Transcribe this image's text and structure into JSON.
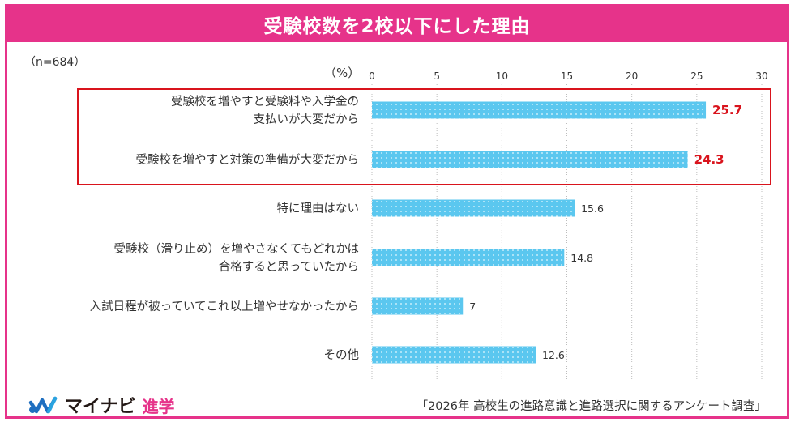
{
  "title": "受験校数を2校以下にした理由",
  "note": "（n=684）",
  "unit": "（%）",
  "brand": {
    "logo_text": "マイナビ",
    "logo_sub": "進学"
  },
  "source": "「2026年 高校生の進路意識と進路選択に関するアンケート調査」",
  "colors": {
    "accent": "#e6338a",
    "bar": "#5bc7ef",
    "highlight": "#d9141d"
  },
  "chart_data": {
    "type": "bar",
    "orientation": "horizontal",
    "title": "受験校数を2校以下にした理由",
    "xlabel": "（%）",
    "xlim": [
      0,
      30
    ],
    "xticks": [
      0,
      5,
      10,
      15,
      20,
      25,
      30
    ],
    "grid": "vertical dotted",
    "categories": [
      [
        "受験校を増やすと受験料や入学金の",
        "支払いが大変だから"
      ],
      [
        "受験校を増やすと対策の準備が大変だから"
      ],
      [
        "特に理由はない"
      ],
      [
        "受験校（滑り止め）を増やさなくてもどれかは",
        "合格すると思っていたから"
      ],
      [
        "入試日程が被っていてこれ以上増やせなかったから"
      ],
      [
        "その他"
      ]
    ],
    "value_labels": [
      "25.7",
      "24.3",
      "15.6",
      "14.8",
      "7",
      "12.6"
    ],
    "values": [
      25.7,
      24.3,
      15.6,
      14.8,
      7,
      12.6
    ],
    "highlighted": [
      0,
      1
    ]
  }
}
